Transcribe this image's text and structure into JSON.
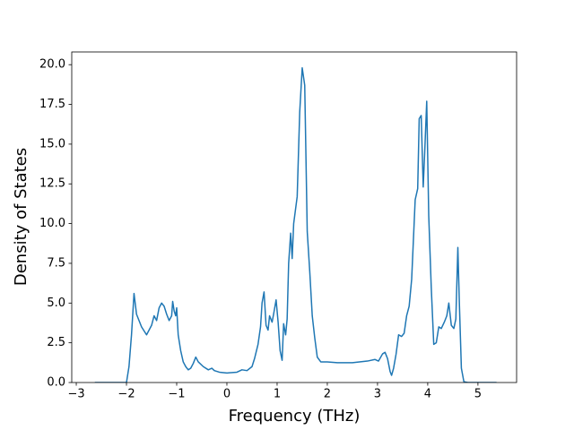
{
  "chart_data": {
    "type": "line",
    "x_label": "Frequency (THz)",
    "y_label": "Density of States",
    "color": "#1f77b4",
    "x": [
      -2.63,
      -2.0,
      -1.95,
      -1.9,
      -1.85,
      -1.8,
      -1.7,
      -1.6,
      -1.5,
      -1.45,
      -1.4,
      -1.35,
      -1.3,
      -1.25,
      -1.2,
      -1.15,
      -1.1,
      -1.08,
      -1.05,
      -1.02,
      -1.0,
      -0.97,
      -0.92,
      -0.87,
      -0.82,
      -0.77,
      -0.72,
      -0.67,
      -0.62,
      -0.57,
      -0.47,
      -0.37,
      -0.3,
      -0.25,
      -0.15,
      0,
      0.2,
      0.3,
      0.4,
      0.5,
      0.55,
      0.62,
      0.67,
      0.7,
      0.74,
      0.78,
      0.82,
      0.85,
      0.9,
      0.93,
      0.98,
      1.02,
      1.06,
      1.1,
      1.13,
      1.17,
      1.2,
      1.23,
      1.27,
      1.3,
      1.33,
      1.4,
      1.45,
      1.5,
      1.55,
      1.6,
      1.65,
      1.7,
      1.75,
      1.8,
      1.87,
      2.0,
      2.2,
      2.5,
      2.8,
      2.95,
      3.02,
      3.1,
      3.15,
      3.2,
      3.25,
      3.28,
      3.32,
      3.37,
      3.42,
      3.48,
      3.53,
      3.58,
      3.63,
      3.68,
      3.75,
      3.8,
      3.83,
      3.87,
      3.91,
      3.94,
      3.98,
      4.02,
      4.07,
      4.12,
      4.17,
      4.22,
      4.27,
      4.33,
      4.38,
      4.42,
      4.47,
      4.52,
      4.56,
      4.6,
      4.63,
      4.67,
      4.72,
      4.8,
      5.37
    ],
    "values": [
      0,
      0,
      1.0,
      3.0,
      5.6,
      4.3,
      3.5,
      3.0,
      3.6,
      4.2,
      3.9,
      4.7,
      5.0,
      4.8,
      4.3,
      3.9,
      4.2,
      5.1,
      4.5,
      4.2,
      4.7,
      3.0,
      2.0,
      1.3,
      1.0,
      0.8,
      0.9,
      1.2,
      1.6,
      1.3,
      1.0,
      0.8,
      0.9,
      0.75,
      0.65,
      0.6,
      0.65,
      0.8,
      0.75,
      1.0,
      1.5,
      2.4,
      3.5,
      5.0,
      5.7,
      3.6,
      3.3,
      4.2,
      3.8,
      4.3,
      5.2,
      3.8,
      2.0,
      1.4,
      3.7,
      3.0,
      4.0,
      7.5,
      9.4,
      7.8,
      10.0,
      11.7,
      17,
      19.8,
      18.7,
      9.5,
      7.0,
      4.2,
      2.8,
      1.6,
      1.3,
      1.3,
      1.25,
      1.25,
      1.35,
      1.45,
      1.35,
      1.8,
      1.9,
      1.5,
      0.7,
      0.45,
      0.9,
      1.8,
      3.0,
      2.9,
      3.1,
      4.2,
      4.8,
      6.5,
      11.5,
      12.2,
      16.6,
      16.8,
      12.3,
      14.5,
      17.7,
      10.5,
      6.0,
      2.4,
      2.5,
      3.5,
      3.4,
      3.8,
      4.2,
      5.0,
      3.6,
      3.4,
      4.0,
      8.5,
      5.0,
      0.9,
      0.05,
      0,
      0
    ],
    "xlim": [
      -3.09,
      5.77
    ],
    "ylim": [
      0,
      20.8
    ],
    "xticks": [
      {
        "value": -3,
        "label": "−3"
      },
      {
        "value": -2,
        "label": "−2"
      },
      {
        "value": -1,
        "label": "−1"
      },
      0,
      1,
      2,
      3,
      4,
      5
    ],
    "yticks": [
      {
        "value": 0,
        "label": "0.0"
      },
      {
        "value": 2.5,
        "label": "2.5"
      },
      {
        "value": 5,
        "label": "5.0"
      },
      {
        "value": 7.5,
        "label": "7.5"
      },
      {
        "value": 10,
        "label": "10.0"
      },
      {
        "value": 12.5,
        "label": "12.5"
      },
      {
        "value": 15,
        "label": "15.0"
      },
      {
        "value": 17.5,
        "label": "17.5"
      },
      {
        "value": 20,
        "label": "20.0"
      }
    ],
    "grid": false
  }
}
